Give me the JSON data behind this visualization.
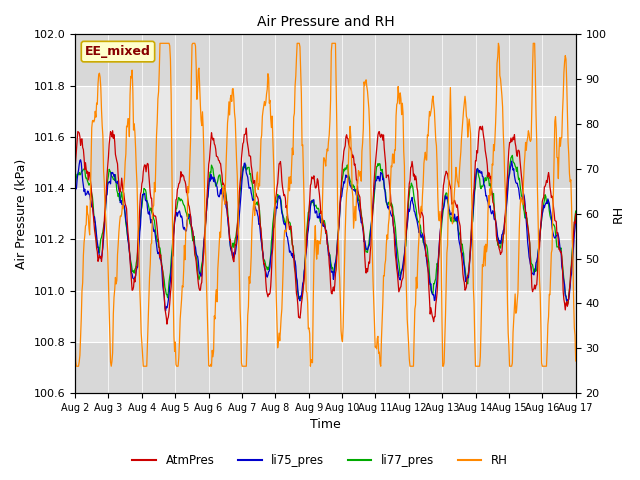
{
  "title": "Air Pressure and RH",
  "xlabel": "Time",
  "ylabel_left": "Air Pressure (kPa)",
  "ylabel_right": "RH",
  "ylim_left": [
    100.6,
    102.0
  ],
  "ylim_right": [
    20,
    100
  ],
  "yticks_left": [
    100.6,
    100.8,
    101.0,
    101.2,
    101.4,
    101.6,
    101.8,
    102.0
  ],
  "yticks_right": [
    20,
    30,
    40,
    50,
    60,
    70,
    80,
    90,
    100
  ],
  "xticklabels": [
    "Aug 2",
    "Aug 3",
    "Aug 4",
    "Aug 5",
    "Aug 6",
    "Aug 7",
    "Aug 8",
    "Aug 9",
    "Aug 10",
    "Aug 11",
    "Aug 12",
    "Aug 13",
    "Aug 14",
    "Aug 15",
    "Aug 16",
    "Aug 17"
  ],
  "color_atm": "#cc0000",
  "color_li75": "#0000cc",
  "color_li77": "#00aa00",
  "color_rh": "#ff8800",
  "legend_labels": [
    "AtmPres",
    "li75_pres",
    "li77_pres",
    "RH"
  ],
  "annotation_text": "EE_mixed",
  "bg_color": "#d8d8d8",
  "bg_color_light": "#e8e8e8",
  "n_points": 720,
  "seed": 7
}
